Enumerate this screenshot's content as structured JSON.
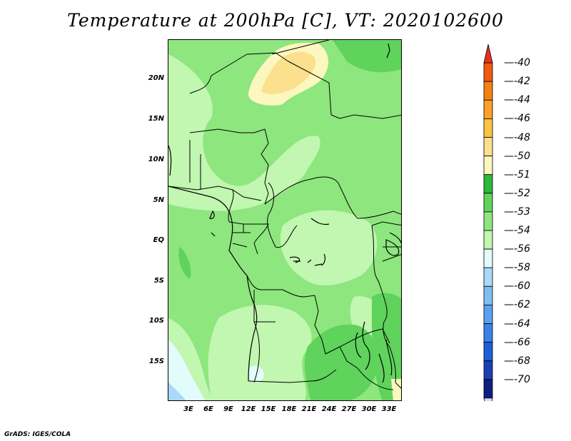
{
  "title": "Temperature at 200hPa [C], VT: 2020102600",
  "credit": "GrADS: IGES/COLA",
  "lat_ticks": [
    "20N",
    "15N",
    "10N",
    "5N",
    "EQ",
    "5S",
    "10S",
    "15S"
  ],
  "lon_ticks": [
    "3E",
    "6E",
    "9E",
    "12E",
    "15E",
    "18E",
    "21E",
    "24E",
    "27E",
    "30E",
    "33E"
  ],
  "colorbar": {
    "labels": [
      "-40",
      "-42",
      "-44",
      "-46",
      "-48",
      "-50",
      "-51",
      "-52",
      "-53",
      "-54",
      "-56",
      "-58",
      "-60",
      "-62",
      "-64",
      "-66",
      "-68",
      "-70"
    ],
    "colors": [
      "#e8321e",
      "#f05a14",
      "#f5820f",
      "#fba028",
      "#fbc342",
      "#fbe08e",
      "#fbf7be",
      "#2db83a",
      "#5fd35c",
      "#8ee67e",
      "#c1f7b0",
      "#e2fbfb",
      "#a8d9f7",
      "#80bdf2",
      "#5ba0ef",
      "#3a82e8",
      "#1f5fd6",
      "#1a3fb0",
      "#0e1f80",
      "#d8d8f8"
    ]
  },
  "fill_colors": {
    "n51": "#fbe08e",
    "n50": "#fbf7be",
    "n52": "#5fd35c",
    "n53": "#8ee67e",
    "n54": "#c1f7b0",
    "n56": "#e2fbfb",
    "n58": "#a8d9f7"
  }
}
